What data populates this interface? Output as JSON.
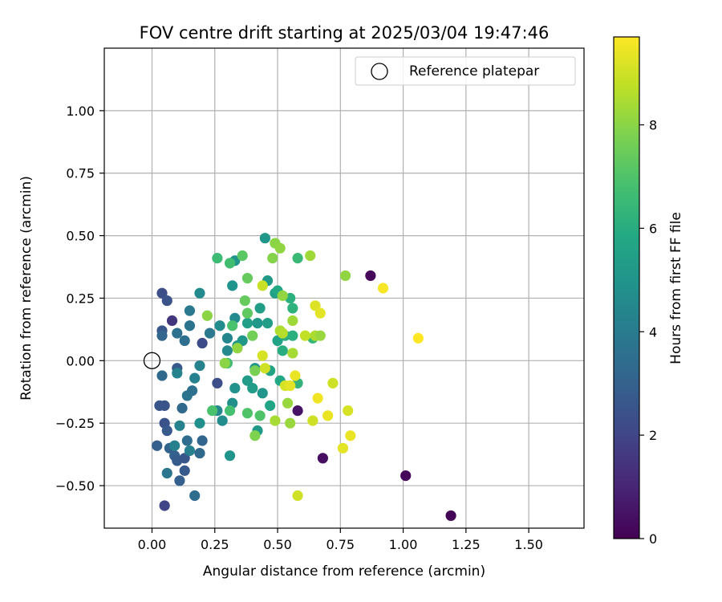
{
  "chart_data": {
    "type": "scatter",
    "title": "FOV centre drift starting at 2025/03/04 19:47:46",
    "xlabel": "Angular distance from reference (arcmin)",
    "ylabel": "Rotation from reference (arcmin)",
    "xlim": [
      -0.19,
      1.72
    ],
    "ylim": [
      -0.67,
      1.25
    ],
    "xticks": [
      0.0,
      0.25,
      0.5,
      0.75,
      1.0,
      1.25,
      1.5
    ],
    "xtick_labels": [
      "0.00",
      "0.25",
      "0.50",
      "0.75",
      "1.00",
      "1.25",
      "1.50"
    ],
    "yticks": [
      -0.5,
      -0.25,
      0.0,
      0.25,
      0.5,
      0.75,
      1.0
    ],
    "ytick_labels": [
      "−0.50",
      "−0.25",
      "0.00",
      "0.25",
      "0.50",
      "0.75",
      "1.00"
    ],
    "grid": true,
    "legend": {
      "placement": "top-right",
      "entries": [
        "Reference platepar"
      ]
    },
    "reference_point": {
      "x": 0.0,
      "y": 0.0
    },
    "colorbar": {
      "label": "Hours from first FF file",
      "min": 0,
      "max": 9.7,
      "ticks": [
        0,
        2,
        4,
        6,
        8
      ],
      "tick_labels": [
        "0",
        "2",
        "4",
        "6",
        "8"
      ],
      "colormap": "viridis"
    },
    "points": [
      {
        "x": 0.87,
        "y": 0.34,
        "c": 0.2
      },
      {
        "x": 1.01,
        "y": -0.46,
        "c": 0.2
      },
      {
        "x": 1.19,
        "y": -0.62,
        "c": 0.1
      },
      {
        "x": 0.68,
        "y": -0.39,
        "c": 0.4
      },
      {
        "x": 0.58,
        "y": -0.2,
        "c": 0.5
      },
      {
        "x": 0.08,
        "y": 0.16,
        "c": 1.5
      },
      {
        "x": 0.05,
        "y": -0.58,
        "c": 2.0
      },
      {
        "x": 0.04,
        "y": 0.27,
        "c": 2.3
      },
      {
        "x": 0.06,
        "y": 0.24,
        "c": 2.5
      },
      {
        "x": 0.04,
        "y": 0.12,
        "c": 2.6
      },
      {
        "x": 0.03,
        "y": -0.18,
        "c": 2.6
      },
      {
        "x": 0.05,
        "y": -0.18,
        "c": 2.5
      },
      {
        "x": 0.05,
        "y": -0.25,
        "c": 2.4
      },
      {
        "x": 0.06,
        "y": -0.28,
        "c": 2.7
      },
      {
        "x": 0.02,
        "y": -0.34,
        "c": 2.9
      },
      {
        "x": 0.07,
        "y": -0.35,
        "c": 3.1
      },
      {
        "x": 0.09,
        "y": -0.38,
        "c": 3.0
      },
      {
        "x": 0.1,
        "y": -0.4,
        "c": 2.8
      },
      {
        "x": 0.11,
        "y": -0.48,
        "c": 2.9
      },
      {
        "x": 0.13,
        "y": -0.44,
        "c": 2.7
      },
      {
        "x": 0.13,
        "y": -0.39,
        "c": 2.6
      },
      {
        "x": 0.1,
        "y": -0.03,
        "c": 2.7
      },
      {
        "x": 0.2,
        "y": 0.07,
        "c": 2.2
      },
      {
        "x": 0.26,
        "y": -0.09,
        "c": 2.3
      },
      {
        "x": 0.04,
        "y": 0.1,
        "c": 3.2
      },
      {
        "x": 0.04,
        "y": -0.06,
        "c": 3.3
      },
      {
        "x": 0.1,
        "y": 0.11,
        "c": 3.6
      },
      {
        "x": 0.12,
        "y": -0.19,
        "c": 3.3
      },
      {
        "x": 0.14,
        "y": -0.14,
        "c": 3.7
      },
      {
        "x": 0.15,
        "y": 0.14,
        "c": 3.7
      },
      {
        "x": 0.13,
        "y": 0.08,
        "c": 3.5
      },
      {
        "x": 0.16,
        "y": -0.12,
        "c": 3.6
      },
      {
        "x": 0.14,
        "y": -0.32,
        "c": 3.4
      },
      {
        "x": 0.19,
        "y": -0.37,
        "c": 3.3
      },
      {
        "x": 0.2,
        "y": -0.32,
        "c": 3.2
      },
      {
        "x": 0.17,
        "y": -0.54,
        "c": 3.4
      },
      {
        "x": 0.06,
        "y": -0.45,
        "c": 3.8
      },
      {
        "x": 0.15,
        "y": 0.2,
        "c": 3.9
      },
      {
        "x": 0.23,
        "y": 0.11,
        "c": 3.9
      },
      {
        "x": 0.17,
        "y": -0.07,
        "c": 4.2
      },
      {
        "x": 0.19,
        "y": -0.02,
        "c": 4.3
      },
      {
        "x": 0.1,
        "y": -0.05,
        "c": 4.3
      },
      {
        "x": 0.09,
        "y": -0.34,
        "c": 4.2
      },
      {
        "x": 0.11,
        "y": -0.26,
        "c": 4.3
      },
      {
        "x": 0.15,
        "y": -0.36,
        "c": 4.2
      },
      {
        "x": 0.19,
        "y": -0.25,
        "c": 4.8
      },
      {
        "x": 0.19,
        "y": 0.27,
        "c": 4.6
      },
      {
        "x": 0.27,
        "y": 0.14,
        "c": 4.7
      },
      {
        "x": 0.26,
        "y": -0.2,
        "c": 4.5
      },
      {
        "x": 0.28,
        "y": -0.24,
        "c": 4.7
      },
      {
        "x": 0.3,
        "y": 0.09,
        "c": 4.4
      },
      {
        "x": 0.3,
        "y": 0.04,
        "c": 4.5
      },
      {
        "x": 0.31,
        "y": -0.38,
        "c": 5.0
      },
      {
        "x": 0.32,
        "y": -0.17,
        "c": 4.8
      },
      {
        "x": 0.33,
        "y": -0.11,
        "c": 4.9
      },
      {
        "x": 0.33,
        "y": 0.17,
        "c": 4.6
      },
      {
        "x": 0.32,
        "y": 0.3,
        "c": 5.0
      },
      {
        "x": 0.33,
        "y": 0.4,
        "c": 5.0
      },
      {
        "x": 0.34,
        "y": 0.06,
        "c": 5.1
      },
      {
        "x": 0.36,
        "y": 0.08,
        "c": 5.1
      },
      {
        "x": 0.38,
        "y": -0.08,
        "c": 5.3
      },
      {
        "x": 0.38,
        "y": 0.15,
        "c": 5.5
      },
      {
        "x": 0.4,
        "y": -0.11,
        "c": 5.3
      },
      {
        "x": 0.41,
        "y": -0.03,
        "c": 5.0
      },
      {
        "x": 0.42,
        "y": 0.15,
        "c": 5.1
      },
      {
        "x": 0.42,
        "y": -0.28,
        "c": 5.2
      },
      {
        "x": 0.43,
        "y": 0.21,
        "c": 5.4
      },
      {
        "x": 0.44,
        "y": -0.13,
        "c": 5.0
      },
      {
        "x": 0.45,
        "y": 0.49,
        "c": 5.1
      },
      {
        "x": 0.46,
        "y": 0.32,
        "c": 5.2
      },
      {
        "x": 0.46,
        "y": 0.15,
        "c": 5.4
      },
      {
        "x": 0.47,
        "y": -0.04,
        "c": 5.6
      },
      {
        "x": 0.47,
        "y": -0.18,
        "c": 5.7
      },
      {
        "x": 0.49,
        "y": 0.27,
        "c": 5.5
      },
      {
        "x": 0.5,
        "y": 0.28,
        "c": 5.8
      },
      {
        "x": 0.5,
        "y": 0.08,
        "c": 5.6
      },
      {
        "x": 0.51,
        "y": -0.08,
        "c": 5.8
      },
      {
        "x": 0.52,
        "y": 0.04,
        "c": 6.0
      },
      {
        "x": 0.53,
        "y": 0.1,
        "c": 6.0
      },
      {
        "x": 0.55,
        "y": 0.25,
        "c": 6.1
      },
      {
        "x": 0.56,
        "y": 0.21,
        "c": 6.2
      },
      {
        "x": 0.56,
        "y": 0.1,
        "c": 6.1
      },
      {
        "x": 0.58,
        "y": -0.09,
        "c": 6.3
      },
      {
        "x": 0.58,
        "y": 0.41,
        "c": 6.5
      },
      {
        "x": 0.64,
        "y": 0.09,
        "c": 6.4
      },
      {
        "x": 0.26,
        "y": 0.41,
        "c": 6.6
      },
      {
        "x": 0.31,
        "y": 0.39,
        "c": 6.7
      },
      {
        "x": 0.31,
        "y": -0.2,
        "c": 6.8
      },
      {
        "x": 0.24,
        "y": -0.2,
        "c": 6.9
      },
      {
        "x": 0.3,
        "y": -0.01,
        "c": 6.7
      },
      {
        "x": 0.32,
        "y": 0.14,
        "c": 6.9
      },
      {
        "x": 0.38,
        "y": -0.21,
        "c": 7.0
      },
      {
        "x": 0.43,
        "y": -0.22,
        "c": 7.0
      },
      {
        "x": 0.36,
        "y": 0.42,
        "c": 7.2
      },
      {
        "x": 0.37,
        "y": 0.24,
        "c": 7.4
      },
      {
        "x": 0.38,
        "y": 0.19,
        "c": 7.3
      },
      {
        "x": 0.38,
        "y": 0.33,
        "c": 7.4
      },
      {
        "x": 0.4,
        "y": 0.1,
        "c": 7.6
      },
      {
        "x": 0.41,
        "y": -0.04,
        "c": 7.7
      },
      {
        "x": 0.41,
        "y": -0.3,
        "c": 7.8
      },
      {
        "x": 0.48,
        "y": 0.41,
        "c": 7.9
      },
      {
        "x": 0.49,
        "y": 0.47,
        "c": 8.0
      },
      {
        "x": 0.51,
        "y": 0.45,
        "c": 8.1
      },
      {
        "x": 0.52,
        "y": 0.26,
        "c": 8.1
      },
      {
        "x": 0.54,
        "y": -0.17,
        "c": 8.2
      },
      {
        "x": 0.55,
        "y": -0.25,
        "c": 8.2
      },
      {
        "x": 0.56,
        "y": 0.16,
        "c": 8.3
      },
      {
        "x": 0.56,
        "y": 0.03,
        "c": 8.4
      },
      {
        "x": 0.49,
        "y": -0.24,
        "c": 8.4
      },
      {
        "x": 0.22,
        "y": 0.18,
        "c": 8.0
      },
      {
        "x": 0.29,
        "y": -0.01,
        "c": 8.0
      },
      {
        "x": 0.34,
        "y": 0.05,
        "c": 8.1
      },
      {
        "x": 0.51,
        "y": 0.12,
        "c": 8.5
      },
      {
        "x": 0.52,
        "y": 0.11,
        "c": 8.6
      },
      {
        "x": 0.63,
        "y": 0.42,
        "c": 8.3
      },
      {
        "x": 0.65,
        "y": 0.1,
        "c": 8.5
      },
      {
        "x": 0.67,
        "y": 0.1,
        "c": 8.2
      },
      {
        "x": 0.77,
        "y": 0.34,
        "c": 8.1
      },
      {
        "x": 0.44,
        "y": 0.3,
        "c": 8.9
      },
      {
        "x": 0.44,
        "y": 0.02,
        "c": 9.1
      },
      {
        "x": 0.45,
        "y": -0.03,
        "c": 9.0
      },
      {
        "x": 0.53,
        "y": -0.1,
        "c": 9.1
      },
      {
        "x": 0.55,
        "y": -0.1,
        "c": 9.3
      },
      {
        "x": 0.57,
        "y": -0.06,
        "c": 9.4
      },
      {
        "x": 0.58,
        "y": -0.54,
        "c": 9.0
      },
      {
        "x": 0.61,
        "y": 0.1,
        "c": 8.8
      },
      {
        "x": 0.64,
        "y": -0.24,
        "c": 9.0
      },
      {
        "x": 0.65,
        "y": 0.22,
        "c": 9.2
      },
      {
        "x": 0.66,
        "y": -0.15,
        "c": 9.5
      },
      {
        "x": 0.67,
        "y": 0.19,
        "c": 9.3
      },
      {
        "x": 0.7,
        "y": -0.22,
        "c": 9.4
      },
      {
        "x": 0.72,
        "y": -0.09,
        "c": 9.0
      },
      {
        "x": 0.76,
        "y": -0.35,
        "c": 9.3
      },
      {
        "x": 0.78,
        "y": -0.2,
        "c": 9.1
      },
      {
        "x": 0.79,
        "y": -0.3,
        "c": 9.4
      },
      {
        "x": 0.92,
        "y": 0.29,
        "c": 9.6
      },
      {
        "x": 1.06,
        "y": 0.09,
        "c": 9.7
      }
    ]
  }
}
